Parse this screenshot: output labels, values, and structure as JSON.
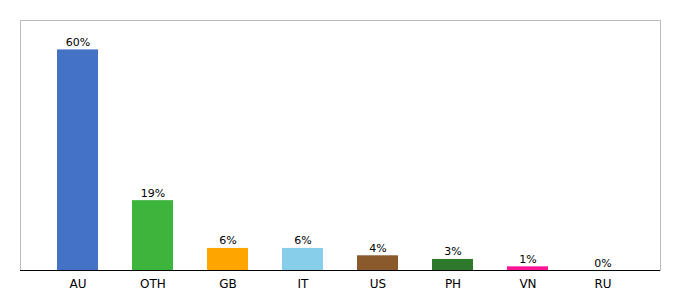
{
  "chart_data": {
    "type": "bar",
    "categories": [
      "AU",
      "OTH",
      "GB",
      "IT",
      "US",
      "PH",
      "VN",
      "RU"
    ],
    "values": [
      60,
      19,
      6,
      6,
      4,
      3,
      1,
      0
    ],
    "value_labels": [
      "60%",
      "19%",
      "6%",
      "6%",
      "4%",
      "3%",
      "1%",
      "0%"
    ],
    "colors": [
      "#4472c4",
      "#3db53d",
      "#ffa500",
      "#87ceeb",
      "#8b5a2b",
      "#2d7a2d",
      "#ff1493",
      "#cccccc"
    ],
    "ylim": [
      0,
      68
    ],
    "data_labels": true,
    "tick_labels": "x",
    "grid": false
  }
}
